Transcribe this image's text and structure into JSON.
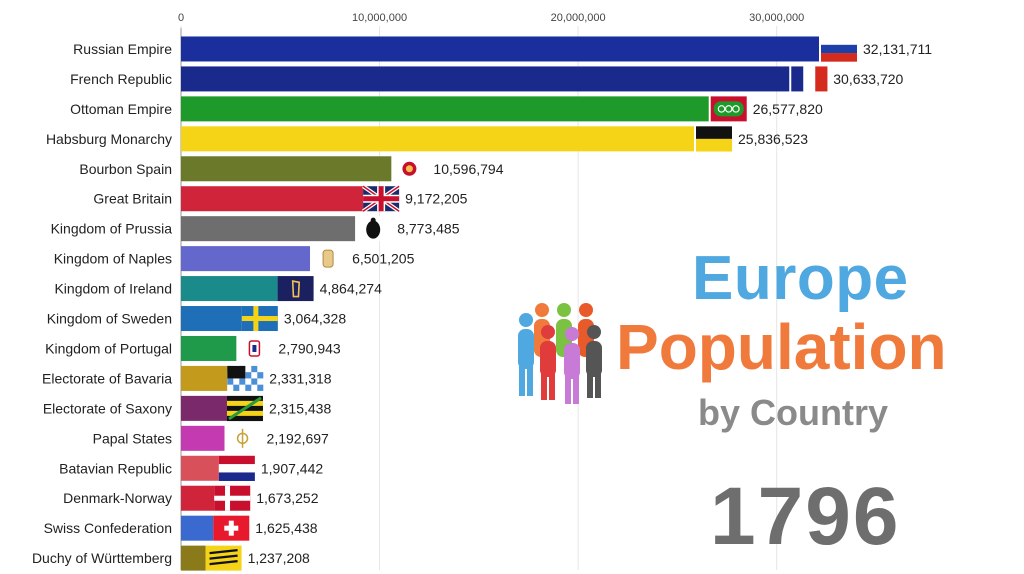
{
  "chart_data": {
    "type": "bar",
    "orientation": "horizontal",
    "title": "Europe Population by Country",
    "title_parts": {
      "line1": "Europe",
      "line2": "Population",
      "line3": "by Country"
    },
    "year": "1796",
    "xlim": [
      0,
      32500000
    ],
    "x_ticks": [
      0,
      10000000,
      20000000,
      30000000
    ],
    "x_tick_labels": [
      "0",
      "10,000,000",
      "20,000,000",
      "30,000,000"
    ],
    "grid": true,
    "categories": [
      "Russian Empire",
      "French Republic",
      "Ottoman Empire",
      "Habsburg Monarchy",
      "Bourbon Spain",
      "Great Britain",
      "Kingdom of Prussia",
      "Kingdom of Naples",
      "Kingdom of Ireland",
      "Kingdom of Sweden",
      "Kingdom of Portugal",
      "Electorate of Bavaria",
      "Electorate of Saxony",
      "Papal States",
      "Batavian Republic",
      "Denmark-Norway",
      "Swiss Confederation",
      "Duchy of Württemberg"
    ],
    "values": [
      32131711,
      30633720,
      26577820,
      25836523,
      10596794,
      9172205,
      8773485,
      6501205,
      4864274,
      3064328,
      2790943,
      2331318,
      2315438,
      2192697,
      1907442,
      1673252,
      1625438,
      1237208
    ],
    "value_labels": [
      "32,131,711",
      "30,633,720",
      "26,577,820",
      "25,836,523",
      "10,596,794",
      "9,172,205",
      "8,773,485",
      "6,501,205",
      "4,864,274",
      "3,064,328",
      "2,790,943",
      "2,331,318",
      "2,315,438",
      "2,192,697",
      "1,907,442",
      "1,673,252",
      "1,625,438",
      "1,237,208"
    ],
    "colors": [
      "#1a2f9c",
      "#1a2a8c",
      "#1e9a2a",
      "#f5d418",
      "#6b7a2a",
      "#d0243a",
      "#6e6e6e",
      "#6468cc",
      "#1a8a8a",
      "#1f6fb8",
      "#1e9a4a",
      "#c49a1c",
      "#7a2a6a",
      "#c43ab0",
      "#d8505a",
      "#d0243a",
      "#3a6ad0",
      "#8a7a1a"
    ],
    "flags": [
      "russia",
      "france",
      "ottoman",
      "habsburg",
      "spain",
      "britain",
      "prussia",
      "naples",
      "ireland",
      "sweden",
      "portugal",
      "bavaria",
      "saxony",
      "papal",
      "batavian",
      "denmark",
      "swiss",
      "wurttemberg"
    ]
  }
}
